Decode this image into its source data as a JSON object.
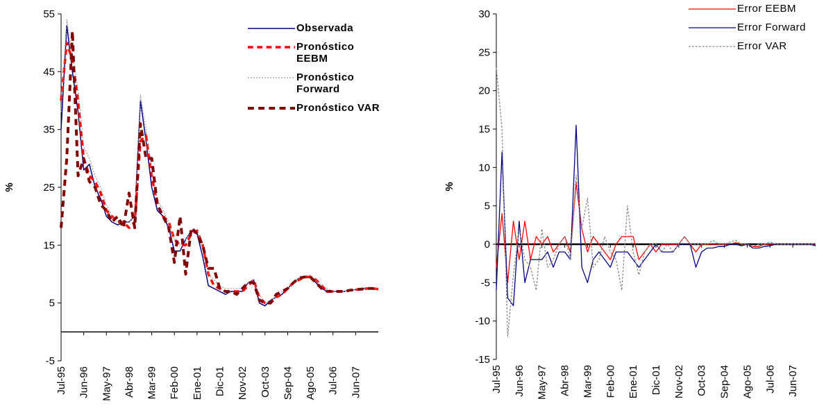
{
  "chart_data": [
    {
      "type": "line",
      "ylabel": "%",
      "ylim": [
        -5,
        55
      ],
      "yticks": [
        -5,
        5,
        15,
        25,
        35,
        45,
        55
      ],
      "zero_line": true,
      "legend": "upper right",
      "legend_bold": true,
      "categories": [
        "Jul-95",
        null,
        null,
        null,
        "Jun-96",
        null,
        null,
        null,
        "May-97",
        null,
        null,
        null,
        "Abr-98",
        null,
        null,
        null,
        "Mar-99",
        null,
        null,
        null,
        "Feb-00",
        null,
        null,
        null,
        "Ene-01",
        null,
        null,
        null,
        "Dic-01",
        null,
        null,
        null,
        "Nov-02",
        null,
        null,
        null,
        "Oct-03",
        null,
        null,
        null,
        "Sep-04",
        null,
        null,
        null,
        "Ago-05",
        null,
        null,
        null,
        "Jul-06",
        null,
        null,
        null,
        "Jun-07",
        null,
        null,
        null,
        null
      ],
      "series": [
        {
          "name": "Observada",
          "color": "#000080",
          "dash": "solid",
          "line_width": 1.5,
          "values": [
            35,
            53,
            45,
            38,
            28,
            29,
            25,
            23,
            20,
            19,
            18.5,
            19,
            19,
            20,
            40,
            33,
            25,
            21,
            20,
            18,
            14,
            14,
            16,
            17.5,
            17,
            13,
            8,
            7.5,
            7,
            6.5,
            7,
            7,
            7,
            8.5,
            9,
            5,
            4.5,
            5.5,
            6,
            6.5,
            7.5,
            8.5,
            9.3,
            9.5,
            9.5,
            8.5,
            7.5,
            7,
            7,
            7,
            7,
            7.2,
            7.3,
            7.5,
            7.5,
            7.5,
            7.3
          ]
        },
        {
          "name": "Pronóstico EEBM",
          "color": "#ff0000",
          "dash": "dashed",
          "line_width": 3.5,
          "values": [
            40,
            50,
            47,
            40,
            30,
            27,
            26,
            24,
            21,
            20,
            19,
            19,
            18,
            19,
            33,
            34,
            27,
            22,
            20,
            19,
            16,
            15,
            15,
            17,
            17.5,
            15,
            10,
            8,
            7.5,
            7,
            7,
            7,
            7,
            8,
            9,
            6,
            5,
            5,
            6,
            6.5,
            7.5,
            8.5,
            9,
            9.5,
            9.5,
            9,
            8,
            7,
            7,
            7,
            7,
            7.2,
            7.3,
            7.4,
            7.5,
            7.5,
            7.4
          ]
        },
        {
          "name": "Pronóstico Forward",
          "color": "#999999",
          "dash": "dotted",
          "line_width": 1.2,
          "values": [
            38,
            54,
            48,
            42,
            32,
            30,
            27,
            25,
            22,
            20,
            19,
            19,
            19,
            20,
            41,
            35,
            28,
            23,
            21,
            19,
            16,
            15,
            16,
            17.5,
            17.5,
            15,
            10,
            9,
            8,
            7.5,
            7.5,
            7.5,
            7.5,
            8.5,
            9,
            6.5,
            5,
            5.5,
            6,
            7,
            7.5,
            8.5,
            9.3,
            9.7,
            9.8,
            9,
            8,
            7.5,
            7,
            7,
            7,
            7.2,
            7.3,
            7.5,
            7.6,
            7.5,
            7.4
          ]
        },
        {
          "name": "Pronóstico VAR",
          "color": "#800000",
          "dash": "dashed",
          "line_width": 4,
          "values": [
            18,
            30,
            52,
            27,
            30,
            26,
            25,
            22,
            21,
            19,
            20,
            18,
            24,
            18,
            36,
            30,
            30,
            22,
            20,
            18,
            12,
            20,
            10,
            18,
            17,
            15,
            11,
            11,
            7.5,
            7,
            7,
            6.5,
            7.5,
            8.5,
            8.5,
            5.5,
            5,
            5,
            6.5,
            7,
            7.5,
            8.5,
            9.3,
            9.5,
            9.5,
            8.5,
            7.5,
            7,
            7,
            7,
            7,
            7.2,
            7.3,
            7.4,
            7.5,
            7.5,
            7.3
          ]
        }
      ]
    },
    {
      "type": "line",
      "ylabel": "%",
      "ylim": [
        -15,
        30
      ],
      "yticks": [
        -15,
        -10,
        -5,
        0,
        5,
        10,
        15,
        20,
        25,
        30
      ],
      "zero_line": true,
      "legend": "upper right",
      "legend_bold": false,
      "categories": [
        "Jul-95",
        null,
        null,
        null,
        "Jun-96",
        null,
        null,
        null,
        "May-97",
        null,
        null,
        null,
        "Abr-98",
        null,
        null,
        null,
        "Mar-99",
        null,
        null,
        null,
        "Feb-00",
        null,
        null,
        null,
        "Ene-01",
        null,
        null,
        null,
        "Dic-01",
        null,
        null,
        null,
        "Nov-02",
        null,
        null,
        null,
        "Oct-03",
        null,
        null,
        null,
        "Sep-04",
        null,
        null,
        null,
        "Ago-05",
        null,
        null,
        null,
        "Jul-06",
        null,
        null,
        null,
        "Jun-07",
        null,
        null,
        null,
        null
      ],
      "series": [
        {
          "name": "Error EEBM",
          "color": "#ff0000",
          "dash": "solid",
          "line_width": 1.3,
          "values": [
            -3,
            4,
            -5,
            3,
            -2,
            3,
            -2,
            1,
            0,
            1,
            -1,
            0,
            1,
            -1,
            8,
            2,
            -1,
            1,
            0,
            -1,
            -2,
            0,
            1,
            1,
            1,
            -2,
            -1,
            0,
            -1,
            0,
            0,
            0,
            0,
            1,
            0,
            -1,
            0,
            0,
            0,
            0,
            0,
            0,
            0.2,
            0,
            0,
            -0.3,
            -0.3,
            0,
            0,
            0,
            0,
            0,
            0,
            0,
            0,
            0,
            0
          ]
        },
        {
          "name": "Error Forward",
          "color": "#000080",
          "dash": "solid",
          "line_width": 1.3,
          "values": [
            -6,
            12,
            -7,
            -8,
            3,
            -5,
            -2,
            -2,
            -2,
            -1,
            -3,
            -1,
            -1,
            -2,
            15.5,
            -3,
            -5,
            -2,
            -1,
            -2,
            -3,
            -1,
            -1,
            -1,
            -2,
            -3,
            -2,
            -1,
            0,
            -1,
            -1,
            -1,
            0,
            0,
            0,
            -3,
            -1,
            -0.5,
            -0.5,
            -0.3,
            -0.3,
            0,
            0,
            -0.2,
            0,
            -0.5,
            -0.5,
            -0.3,
            -0.2,
            0,
            0,
            0,
            0,
            0,
            0,
            0,
            -0.2
          ]
        },
        {
          "name": "Error VAR",
          "color": "#888888",
          "dash": "dashed",
          "line_width": 1.3,
          "values": [
            23,
            15,
            -12,
            -4,
            2,
            -2,
            -3,
            -6,
            2,
            -3,
            -2,
            0,
            1,
            -2,
            9,
            2,
            6,
            -3,
            -2,
            1,
            -1,
            -2,
            -6,
            5,
            -1,
            -4,
            -1,
            0,
            0,
            -1,
            0,
            -1,
            0,
            1,
            0,
            0,
            0,
            0,
            0.5,
            0,
            0,
            0.3,
            0.5,
            0,
            0,
            -0.3,
            0,
            0,
            0.3,
            0,
            0,
            0,
            0,
            0,
            0,
            0,
            0
          ]
        }
      ]
    }
  ]
}
